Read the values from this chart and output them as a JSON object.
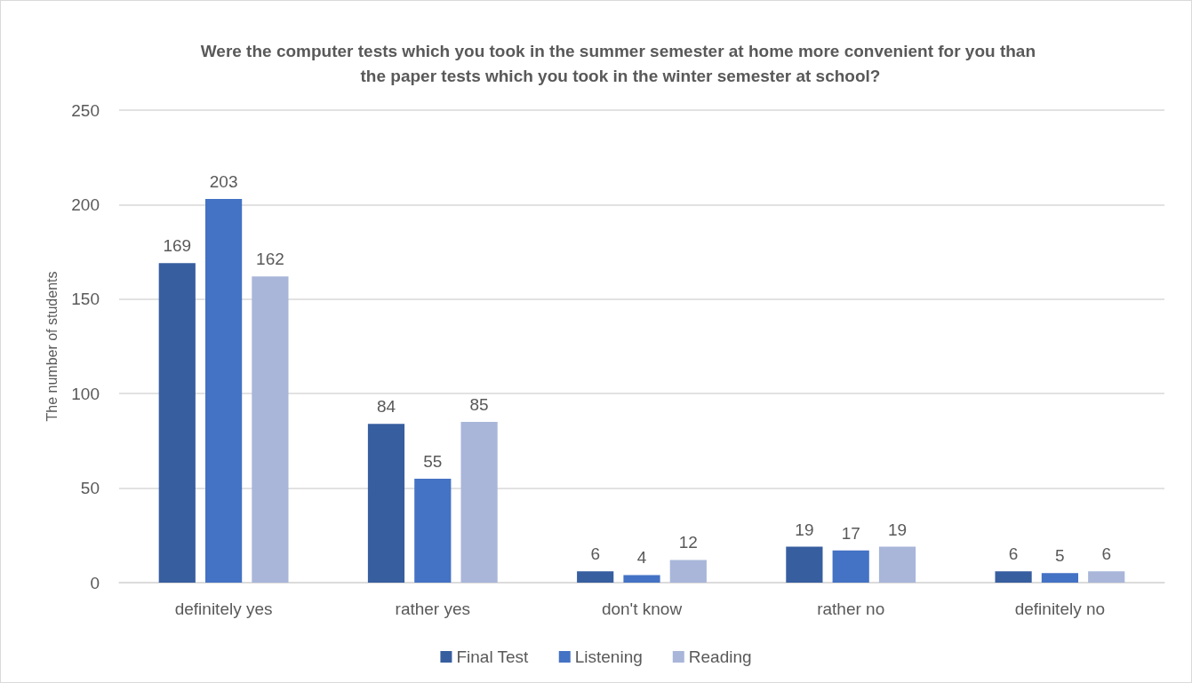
{
  "chart_data": {
    "type": "bar",
    "title": "Were the computer tests which you took in the summer semester at home more convenient for you than the paper tests which you took in the winter semester at school?",
    "ylabel": "The number of students",
    "categories": [
      "definitely yes",
      "rather yes",
      "don't know",
      "rather no",
      "definitely no"
    ],
    "series": [
      {
        "name": "Final Test",
        "color": "#375e9f",
        "values": [
          169,
          84,
          6,
          19,
          6
        ]
      },
      {
        "name": "Listening",
        "color": "#4472c4",
        "values": [
          203,
          55,
          4,
          17,
          5
        ]
      },
      {
        "name": "Reading",
        "color": "#a9b6da",
        "values": [
          162,
          85,
          12,
          19,
          6
        ]
      }
    ],
    "ylim": [
      0,
      250
    ],
    "yticks": [
      0,
      50,
      100,
      150,
      200,
      250
    ],
    "grid": "y",
    "legend": "bottom",
    "data_labels": true
  }
}
